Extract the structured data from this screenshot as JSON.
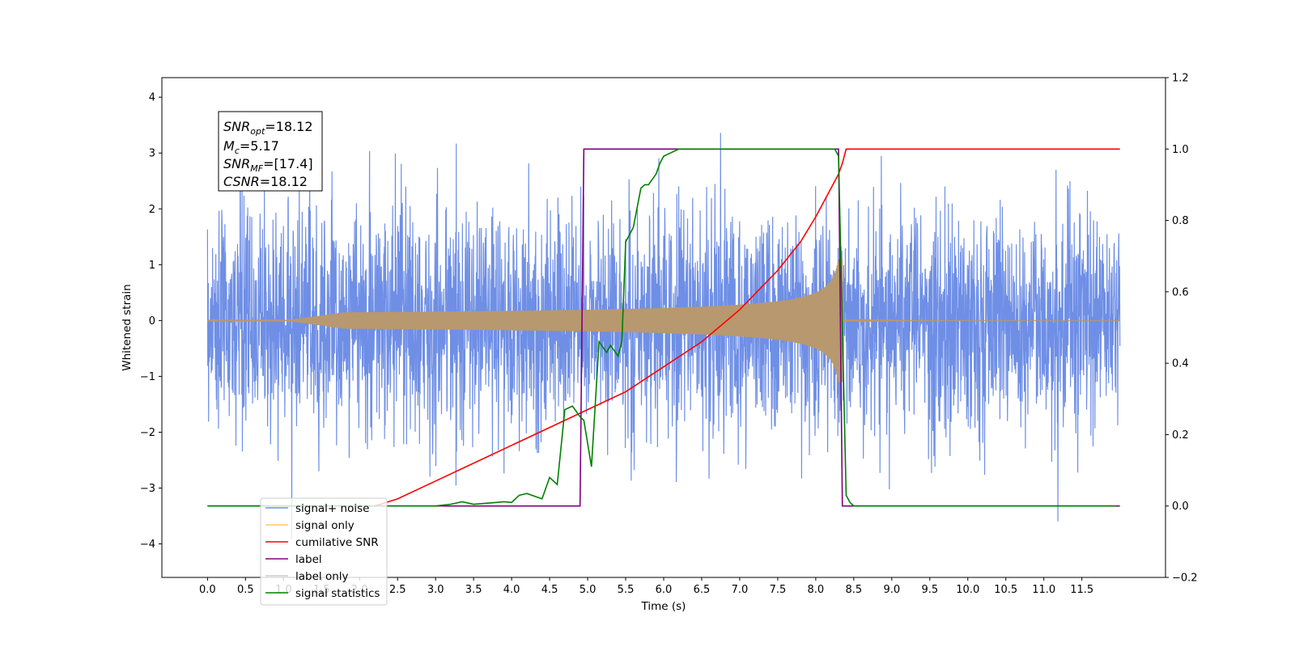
{
  "chart_data": {
    "type": "line",
    "xlabel": "Time (s)",
    "ylabel_left": "Whitened strain",
    "ylabel_right": "",
    "xlim": [
      -0.6,
      12.6
    ],
    "ylim_left": [
      -4.6,
      4.35
    ],
    "ylim_right": [
      -0.2,
      1.2
    ],
    "grid": false,
    "legend_position": "lower-left",
    "x_ticks": [
      "0.0",
      "0.5",
      "1.0",
      "1.5",
      "2.0",
      "2.5",
      "3.0",
      "3.5",
      "4.0",
      "4.5",
      "5.0",
      "5.5",
      "6.0",
      "6.5",
      "7.0",
      "7.5",
      "8.0",
      "8.5",
      "9.0",
      "9.5",
      "10.0",
      "10.5",
      "11.0",
      "11.5"
    ],
    "y_ticks_left": [
      "−4",
      "−3",
      "−2",
      "−1",
      "0",
      "1",
      "2",
      "3",
      "4"
    ],
    "y_ticks_right": [
      "−0.2",
      "0.0",
      "0.2",
      "0.4",
      "0.6",
      "0.8",
      "1.0",
      "1.2"
    ],
    "annotation": {
      "lines": [
        {
          "main": "SNR",
          "sub": "opt",
          "rest": "=18.12"
        },
        {
          "main": "M",
          "sub": "c",
          "rest": "=5.17"
        },
        {
          "main": "SNR",
          "sub": "MF",
          "rest": "=[17.4]"
        },
        {
          "main": "CSNR",
          "sub": "",
          "rest": "=18.12"
        }
      ]
    },
    "legend": [
      {
        "label": "signal+ noise",
        "color": "#6f8fe6"
      },
      {
        "label": "signal only",
        "color": "#ffc966"
      },
      {
        "label": "cumilative SNR",
        "color": "#ff0000"
      },
      {
        "label": "label",
        "color": "#800080"
      },
      {
        "label": "label only",
        "color": "#cccccc"
      },
      {
        "label": "signal statistics",
        "color": "#008000"
      }
    ],
    "series": [
      {
        "name": "signal+ noise",
        "axis": "left",
        "color": "#6f8fe6",
        "description_type": "noise",
        "x_range": [
          0.0,
          12.0
        ],
        "approx_std": 1.0,
        "approx_extremes": [
          -4.1,
          3.95
        ]
      },
      {
        "name": "signal only",
        "axis": "left",
        "color": "#b8986e",
        "description_type": "chirp",
        "x_range": [
          0.0,
          12.0
        ],
        "chirp_start": 1.0,
        "merger_time": 8.35,
        "peak_amplitude": 1.1
      },
      {
        "name": "cumilative SNR",
        "axis": "right",
        "color": "#ff0000",
        "x": [
          2.2,
          2.5,
          3.0,
          3.5,
          4.0,
          4.5,
          5.0,
          5.5,
          6.0,
          6.5,
          7.0,
          7.5,
          7.8,
          8.0,
          8.2,
          8.3,
          8.35,
          8.4,
          9.0,
          10.0,
          11.0,
          12.0
        ],
        "y": [
          0.0,
          0.02,
          0.07,
          0.12,
          0.17,
          0.22,
          0.27,
          0.32,
          0.39,
          0.46,
          0.55,
          0.66,
          0.74,
          0.81,
          0.89,
          0.93,
          0.96,
          1.0,
          1.0,
          1.0,
          1.0,
          1.0
        ]
      },
      {
        "name": "label",
        "axis": "right",
        "color": "#800080",
        "x": [
          0.0,
          4.9,
          4.95,
          8.3,
          8.35,
          12.0
        ],
        "y": [
          0.0,
          0.0,
          1.0,
          1.0,
          0.0,
          0.0
        ]
      },
      {
        "name": "signal statistics",
        "axis": "right",
        "color": "#008000",
        "x": [
          0.0,
          2.5,
          3.0,
          3.2,
          3.35,
          3.5,
          3.8,
          3.9,
          4.0,
          4.1,
          4.2,
          4.4,
          4.5,
          4.6,
          4.7,
          4.8,
          4.9,
          4.95,
          5.05,
          5.15,
          5.25,
          5.3,
          5.4,
          5.45,
          5.5,
          5.55,
          5.6,
          5.7,
          5.75,
          5.8,
          5.9,
          5.95,
          6.0,
          6.1,
          6.2,
          6.3,
          6.4,
          8.25,
          8.3,
          8.35,
          8.4,
          8.45,
          8.5,
          8.6,
          11.95
        ],
        "y": [
          0.0,
          0.0,
          0.0,
          0.005,
          0.012,
          0.005,
          0.01,
          0.012,
          0.01,
          0.03,
          0.035,
          0.02,
          0.08,
          0.06,
          0.27,
          0.28,
          0.25,
          0.24,
          0.11,
          0.46,
          0.43,
          0.45,
          0.42,
          0.46,
          0.74,
          0.76,
          0.78,
          0.89,
          0.9,
          0.9,
          0.93,
          0.96,
          0.98,
          0.99,
          1.0,
          1.0,
          1.0,
          1.0,
          0.98,
          0.5,
          0.03,
          0.01,
          0.0,
          0.0,
          0.0
        ]
      }
    ]
  }
}
